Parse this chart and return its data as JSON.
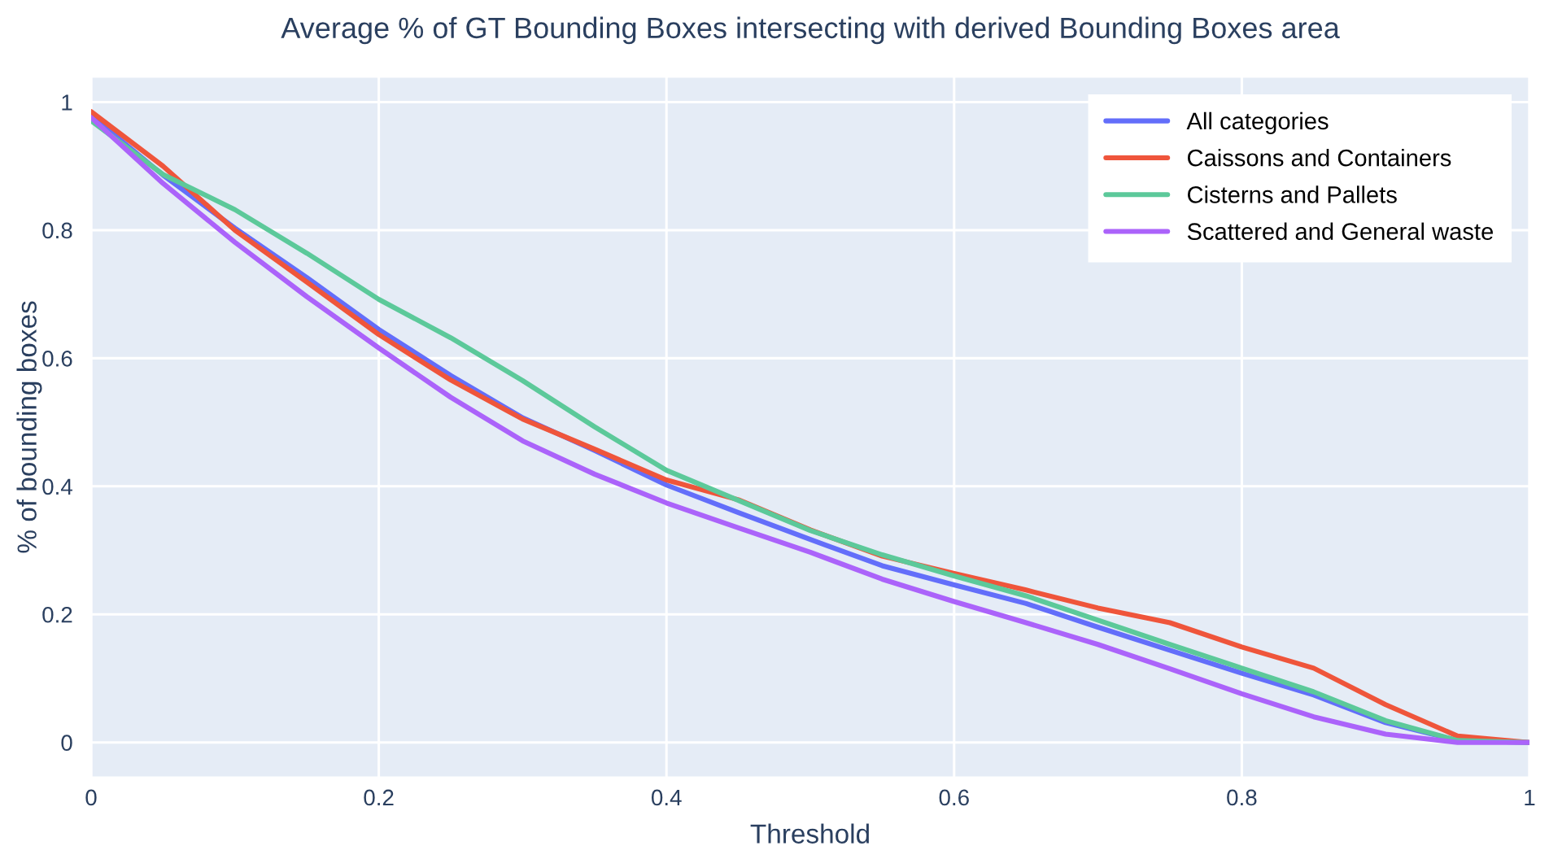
{
  "chart_data": {
    "type": "line",
    "title": "Average % of GT Bounding Boxes intersecting with derived Bounding Boxes area",
    "xlabel": "Threshold",
    "ylabel": "% of bounding boxes",
    "x": [
      0,
      0.05,
      0.1,
      0.15,
      0.2,
      0.25,
      0.3,
      0.35,
      0.4,
      0.45,
      0.5,
      0.55,
      0.6,
      0.65,
      0.7,
      0.75,
      0.8,
      0.85,
      0.9,
      0.95,
      1
    ],
    "series": [
      {
        "name": "All categories",
        "color": "#636efa",
        "values": [
          0.979,
          0.886,
          0.803,
          0.726,
          0.645,
          0.573,
          0.507,
          0.456,
          0.402,
          0.359,
          0.317,
          0.276,
          0.246,
          0.217,
          0.18,
          0.144,
          0.108,
          0.074,
          0.031,
          0.003,
          0
        ]
      },
      {
        "name": "Caissons and Containers",
        "color": "#ef553b",
        "values": [
          0.985,
          0.9,
          0.8,
          0.719,
          0.637,
          0.566,
          0.505,
          0.458,
          0.41,
          0.379,
          0.332,
          0.291,
          0.264,
          0.238,
          0.21,
          0.187,
          0.149,
          0.116,
          0.059,
          0.01,
          0
        ]
      },
      {
        "name": "Cisterns and Pallets",
        "color": "#5cc99a",
        "values": [
          0.971,
          0.887,
          0.832,
          0.764,
          0.692,
          0.632,
          0.565,
          0.493,
          0.425,
          0.378,
          0.331,
          0.293,
          0.26,
          0.229,
          0.191,
          0.153,
          0.116,
          0.079,
          0.034,
          0.003,
          0
        ]
      },
      {
        "name": "Scattered and General waste",
        "color": "#ab63fa",
        "values": [
          0.976,
          0.873,
          0.781,
          0.696,
          0.616,
          0.539,
          0.471,
          0.419,
          0.374,
          0.335,
          0.297,
          0.255,
          0.22,
          0.187,
          0.153,
          0.115,
          0.076,
          0.04,
          0.013,
          0,
          0
        ]
      }
    ],
    "xlim": [
      0,
      1
    ],
    "ylim": [
      -0.055,
      1.04
    ],
    "xticks": [
      0,
      0.2,
      0.4,
      0.6,
      0.8,
      1
    ],
    "yticks": [
      0,
      0.2,
      0.4,
      0.6,
      0.8,
      1
    ],
    "grid": true,
    "legend": "top right",
    "line_style": "solid"
  }
}
